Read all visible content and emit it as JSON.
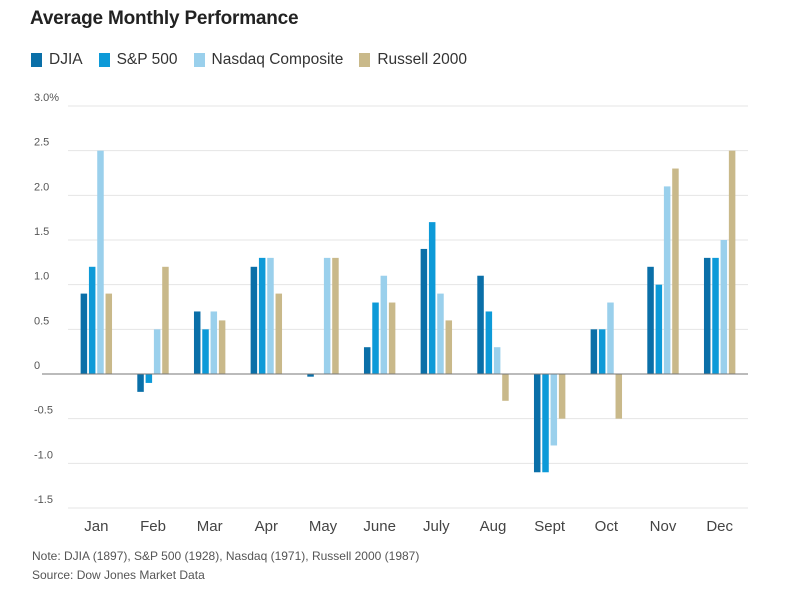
{
  "chart_data": {
    "type": "bar",
    "title": "Average Monthly Performance",
    "categories": [
      "Jan",
      "Feb",
      "Mar",
      "Apr",
      "May",
      "June",
      "July",
      "Aug",
      "Sept",
      "Oct",
      "Nov",
      "Dec"
    ],
    "series": [
      {
        "name": "DJIA",
        "color": "#0a6fa8",
        "values": [
          0.9,
          -0.2,
          0.7,
          1.2,
          -0.03,
          0.3,
          1.4,
          1.1,
          -1.1,
          0.5,
          1.2,
          1.3
        ]
      },
      {
        "name": "S&P 500",
        "color": "#0d9ad8",
        "values": [
          1.2,
          -0.1,
          0.5,
          1.3,
          0.0,
          0.8,
          1.7,
          0.7,
          -1.1,
          0.5,
          1.0,
          1.3
        ]
      },
      {
        "name": "Nasdaq Composite",
        "color": "#9ad0ec",
        "values": [
          2.5,
          0.5,
          0.7,
          1.3,
          1.3,
          1.1,
          0.9,
          0.3,
          -0.8,
          0.8,
          2.1,
          1.5
        ]
      },
      {
        "name": "Russell 2000",
        "color": "#c9b98a",
        "values": [
          0.9,
          1.2,
          0.6,
          0.9,
          1.3,
          0.8,
          0.6,
          -0.3,
          -0.5,
          -0.5,
          2.3,
          2.5
        ]
      }
    ],
    "ylim": [
      -1.5,
      3.0
    ],
    "yticks": [
      3.0,
      2.5,
      2.0,
      1.5,
      1.0,
      0.5,
      0,
      -0.5,
      -1.0,
      -1.5
    ],
    "ytick_labels": [
      "3.0%",
      "2.5",
      "2.0",
      "1.5",
      "1.0",
      "0.5",
      "0",
      "-0.5",
      "-1.0",
      "-1.5"
    ],
    "xlabel": "",
    "ylabel": "",
    "grid": true,
    "legend_position": "top-left"
  },
  "notes": {
    "note": "Note: DJIA (1897), S&P 500 (1928), Nasdaq (1971), Russell 2000 (1987)",
    "source": "Source: Dow Jones Market Data"
  }
}
